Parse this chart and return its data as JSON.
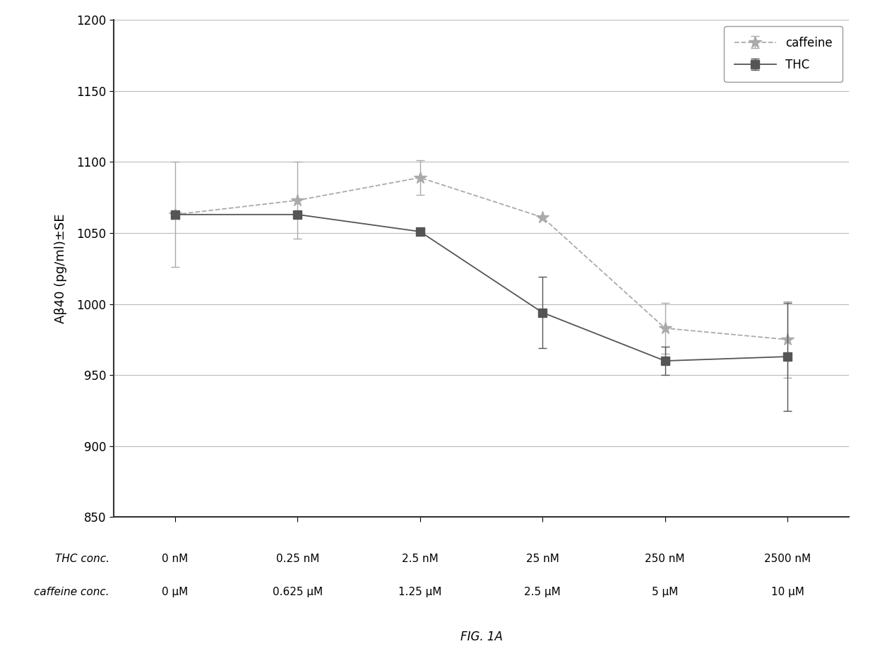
{
  "x_positions": [
    0,
    1,
    2,
    3,
    4,
    5
  ],
  "thc_y": [
    1063,
    1063,
    1051,
    994,
    960,
    963
  ],
  "thc_yerr_upper": [
    0,
    0,
    0,
    25,
    10,
    38
  ],
  "thc_yerr_lower": [
    0,
    0,
    0,
    25,
    10,
    38
  ],
  "caffeine_y": [
    1063,
    1073,
    1089,
    1061,
    983,
    975
  ],
  "caffeine_yerr_upper": [
    37,
    27,
    12,
    0,
    18,
    27
  ],
  "caffeine_yerr_lower": [
    37,
    27,
    12,
    0,
    18,
    27
  ],
  "x_tick_labels_top": [
    "0 nM",
    "0.25 nM",
    "2.5 nM",
    "25 nM",
    "250 nM",
    "2500 nM"
  ],
  "x_tick_labels_bottom": [
    "0 μM",
    "0.625 μM",
    "1.25 μM",
    "2.5 μM",
    "5 μM",
    "10 μM"
  ],
  "x_label_left_top": "THC conc.",
  "x_label_left_bottom": "caffeine conc.",
  "ylabel": "Aβ40 (pg/ml)±SE",
  "ylim": [
    850,
    1200
  ],
  "yticks": [
    850,
    900,
    950,
    1000,
    1050,
    1100,
    1150,
    1200
  ],
  "thc_color": "#555555",
  "caffeine_color": "#aaaaaa",
  "thc_linestyle": "-",
  "caffeine_linestyle": "--",
  "thc_marker": "s",
  "caffeine_marker": "*",
  "thc_marker_size": 9,
  "caffeine_marker_size": 13,
  "thc_label": "THC",
  "caffeine_label": "caffeine",
  "figure_label": "FIG. 1A",
  "background_color": "#ffffff",
  "grid_color": "#bbbbbb",
  "spine_color": "#333333"
}
